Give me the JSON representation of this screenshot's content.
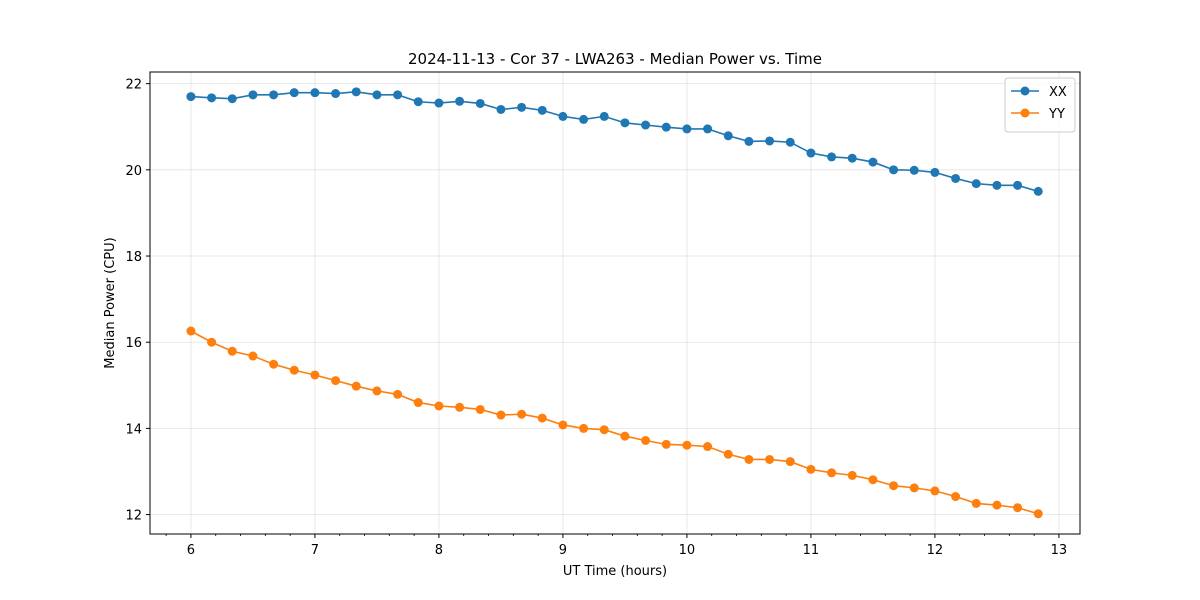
{
  "chart_data": {
    "type": "line",
    "title": "2024-11-13 - Cor 37 - LWA263 - Median Power vs. Time",
    "xlabel": "UT Time (hours)",
    "ylabel": "Median Power (CPU)",
    "xlim": [
      5.67,
      13.17
    ],
    "ylim": [
      11.55,
      22.27
    ],
    "xticks": [
      6,
      7,
      8,
      9,
      10,
      11,
      12,
      13
    ],
    "yticks": [
      12,
      14,
      16,
      18,
      20,
      22
    ],
    "grid": true,
    "legend_position": "top-right",
    "x": [
      6.0,
      6.1667,
      6.3333,
      6.5,
      6.6667,
      6.8333,
      7.0,
      7.1667,
      7.3333,
      7.5,
      7.6667,
      7.8333,
      8.0,
      8.1667,
      8.3333,
      8.5,
      8.6667,
      8.8333,
      9.0,
      9.1667,
      9.3333,
      9.5,
      9.6667,
      9.8333,
      10.0,
      10.1667,
      10.3333,
      10.5,
      10.6667,
      10.8333,
      11.0,
      11.1667,
      11.3333,
      11.5,
      11.6667,
      11.8333,
      12.0,
      12.1667,
      12.3333,
      12.5,
      12.6667,
      12.8333
    ],
    "series": [
      {
        "name": "XX",
        "color": "#1f77b4",
        "values": [
          21.7,
          21.67,
          21.65,
          21.74,
          21.74,
          21.79,
          21.79,
          21.77,
          21.81,
          21.74,
          21.74,
          21.58,
          21.55,
          21.59,
          21.54,
          21.4,
          21.45,
          21.38,
          21.24,
          21.17,
          21.24,
          21.09,
          21.04,
          20.99,
          20.95,
          20.95,
          20.79,
          20.66,
          20.67,
          20.64,
          20.39,
          20.3,
          20.27,
          20.18,
          20.0,
          19.99,
          19.94,
          19.8,
          19.68,
          19.64,
          19.64,
          19.5
        ]
      },
      {
        "name": "YY",
        "color": "#ff7f0e",
        "values": [
          16.26,
          16.0,
          15.79,
          15.68,
          15.49,
          15.35,
          15.24,
          15.11,
          14.98,
          14.87,
          14.79,
          14.6,
          14.52,
          14.49,
          14.44,
          14.31,
          14.33,
          14.24,
          14.08,
          14.0,
          13.97,
          13.82,
          13.72,
          13.63,
          13.61,
          13.58,
          13.4,
          13.28,
          13.28,
          13.23,
          13.05,
          12.97,
          12.91,
          12.81,
          12.67,
          12.62,
          12.55,
          12.42,
          12.26,
          12.22,
          12.16,
          12.02
        ]
      }
    ]
  }
}
